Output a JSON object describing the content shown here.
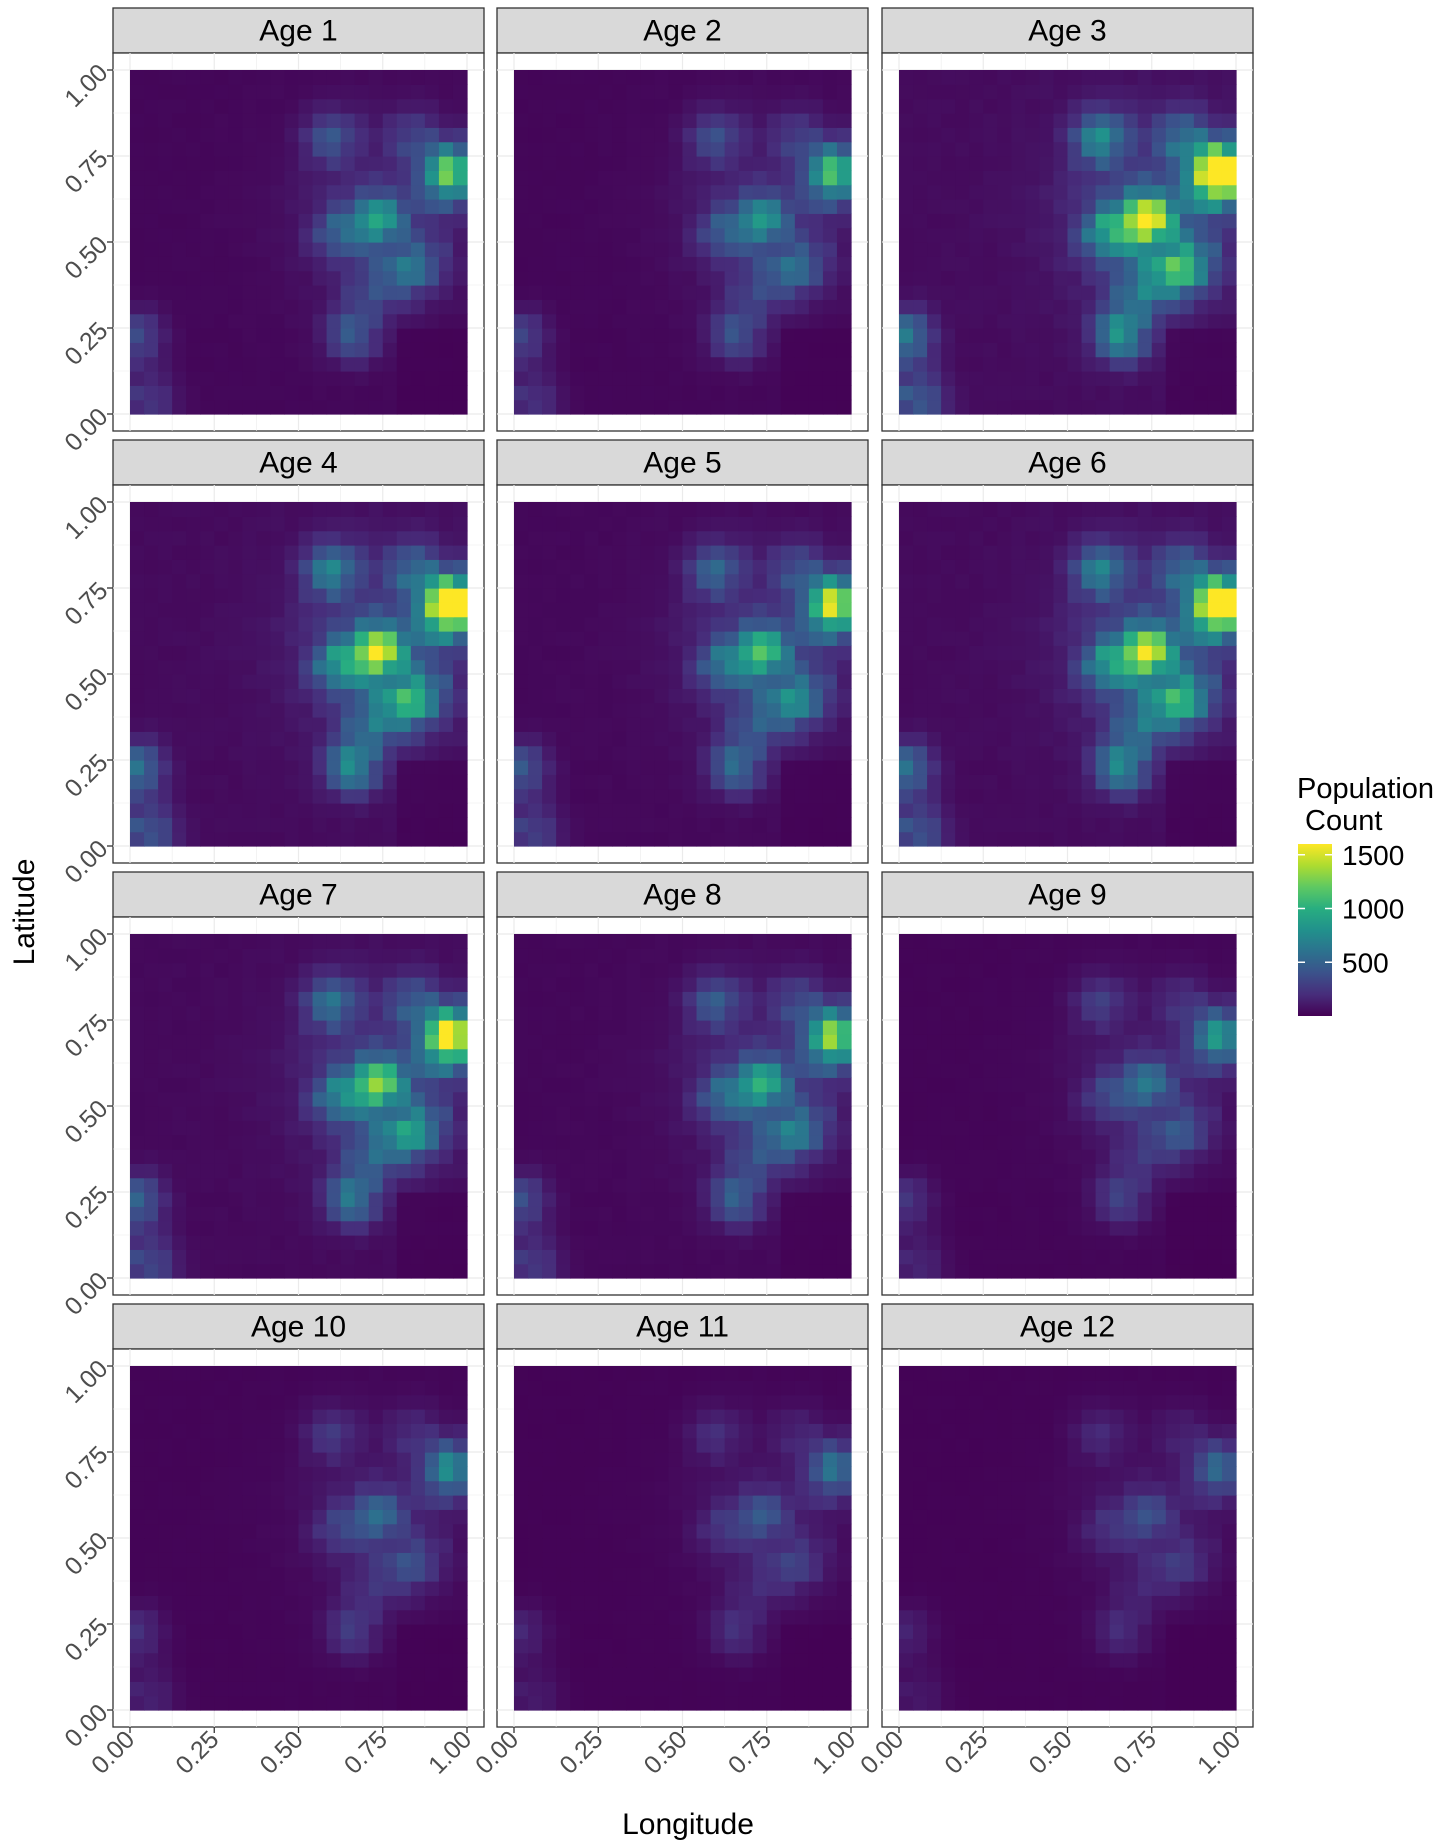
{
  "chart_data": {
    "type": "heatmap",
    "layout": "faceted grid of 12 heatmap panels (4 rows x 3 columns)",
    "xlabel": "Longitude",
    "ylabel": "Latitude",
    "xlim": [
      0,
      1
    ],
    "ylim": [
      0,
      1
    ],
    "x_ticks": [
      "0.00",
      "0.25",
      "0.50",
      "0.75",
      "1.00"
    ],
    "y_ticks": [
      "0.00",
      "0.25",
      "0.50",
      "0.75",
      "1.00"
    ],
    "tick_label_rotation_deg": 45,
    "grid": true,
    "grid_resolution": 24,
    "colormap": "viridis",
    "panels": [
      {
        "label": "Age 1",
        "scale": 0.55
      },
      {
        "label": "Age 2",
        "scale": 0.5
      },
      {
        "label": "Age 3",
        "scale": 1.0
      },
      {
        "label": "Age 4",
        "scale": 0.93
      },
      {
        "label": "Age 5",
        "scale": 0.68
      },
      {
        "label": "Age 6",
        "scale": 0.92
      },
      {
        "label": "Age 7",
        "scale": 0.78
      },
      {
        "label": "Age 8",
        "scale": 0.6
      },
      {
        "label": "Age 9",
        "scale": 0.38
      },
      {
        "label": "Age 10",
        "scale": 0.34
      },
      {
        "label": "Age 11",
        "scale": 0.27
      },
      {
        "label": "Age 12",
        "scale": 0.24
      }
    ],
    "hotspots": [
      {
        "lon": 0.97,
        "lat": 0.71,
        "weight": 1.0
      },
      {
        "lon": 0.92,
        "lat": 0.67,
        "weight": 0.45
      },
      {
        "lon": 0.74,
        "lat": 0.57,
        "weight": 0.82
      },
      {
        "lon": 0.62,
        "lat": 0.53,
        "weight": 0.45
      },
      {
        "lon": 0.6,
        "lat": 0.8,
        "weight": 0.4
      },
      {
        "lon": 0.84,
        "lat": 0.8,
        "weight": 0.28
      },
      {
        "lon": 0.8,
        "lat": 0.41,
        "weight": 0.42
      },
      {
        "lon": 0.88,
        "lat": 0.44,
        "weight": 0.32
      },
      {
        "lon": 0.66,
        "lat": 0.23,
        "weight": 0.42
      },
      {
        "lon": 0.02,
        "lat": 0.22,
        "weight": 0.38
      },
      {
        "lon": 0.05,
        "lat": 0.04,
        "weight": 0.28
      },
      {
        "lon": 0.7,
        "lat": 0.35,
        "weight": 0.25
      }
    ],
    "legend": {
      "title_line1": "Population",
      "title_line2": " Count",
      "ticks": [
        {
          "value": 500,
          "label": "500"
        },
        {
          "value": 1000,
          "label": "1000"
        },
        {
          "value": 1500,
          "label": "1500"
        }
      ],
      "range": [
        0,
        1600
      ],
      "placement": "right"
    }
  }
}
